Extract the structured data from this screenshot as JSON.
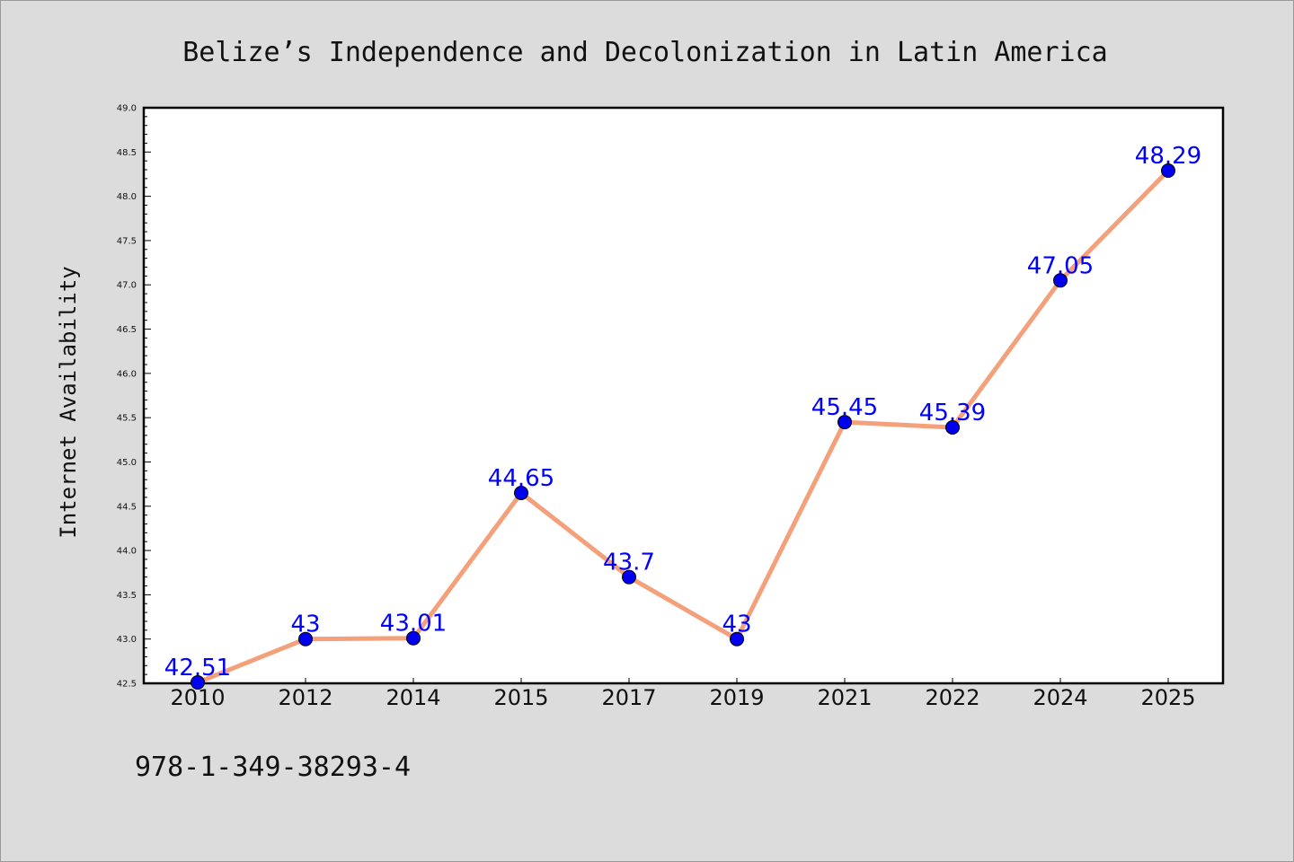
{
  "chart_data": {
    "type": "line",
    "title": "Belize’s Independence and Decolonization in Latin America",
    "xlabel": "",
    "ylabel": "Internet Availability",
    "categories": [
      "2010",
      "2012",
      "2014",
      "2015",
      "2017",
      "2019",
      "2021",
      "2022",
      "2024",
      "2025"
    ],
    "series": [
      {
        "values": [
          42.51,
          43,
          43.01,
          44.65,
          43.7,
          43,
          45.45,
          45.39,
          47.05,
          48.29
        ],
        "data_labels": [
          "42.51",
          "43",
          "43.01",
          "44.65",
          "43.7",
          "43",
          "45.45",
          "45.39",
          "47.05",
          "48.29"
        ]
      }
    ],
    "ylim": [
      42.5,
      49.0
    ],
    "yticks": [
      "42.5",
      "43.0",
      "43.5",
      "44.0",
      "44.5",
      "45.0",
      "45.5",
      "46.0",
      "46.5",
      "47.0",
      "47.5",
      "48.0",
      "48.5",
      "49.0"
    ],
    "grid": false,
    "legend": "none",
    "colors": {
      "line": "#f4a07a",
      "marker": "#0000ee",
      "label": "#0000ff",
      "background": "#dcdcdc",
      "plot_background": "#ffffff"
    }
  },
  "footer": {
    "isbn": "978-1-349-38293-4"
  }
}
